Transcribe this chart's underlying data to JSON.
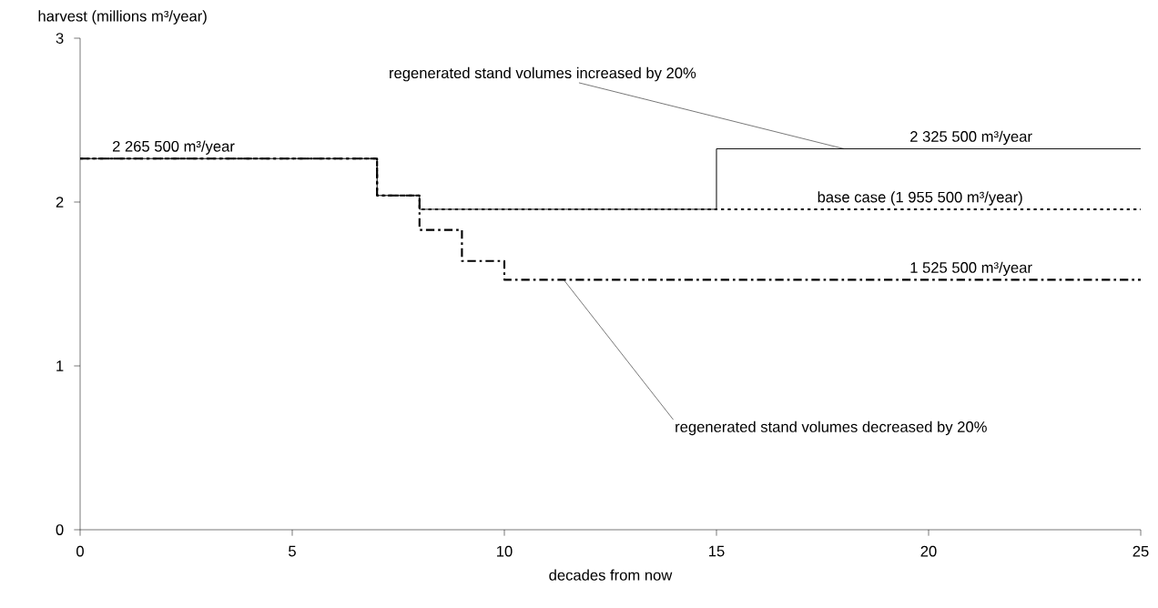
{
  "chart_data": {
    "type": "step",
    "xlabel": "decades from now",
    "ylabel": "harvest (millions m³/year)",
    "xlim": [
      0,
      25
    ],
    "ylim": [
      0,
      3
    ],
    "xticks": [
      0,
      5,
      10,
      15,
      20,
      25
    ],
    "yticks": [
      0,
      1,
      2,
      3
    ],
    "grid": false,
    "marker": "none",
    "series": [
      {
        "color": "#000000",
        "line_style": "solid",
        "x": [
          0,
          7,
          8,
          15,
          25
        ],
        "values": [
          2.2655,
          2.04,
          1.9555,
          2.3255,
          2.3255
        ]
      },
      {
        "color": "#000000",
        "line_style": "dotted",
        "x": [
          0,
          7,
          8,
          25
        ],
        "values": [
          2.2655,
          2.04,
          1.9555,
          1.9555
        ]
      },
      {
        "color": "#000000",
        "line_style": "dashed",
        "x": [
          0,
          7,
          8,
          9,
          10,
          25
        ],
        "values": [
          2.2655,
          2.04,
          1.83,
          1.64,
          1.5255,
          1.5255
        ]
      }
    ],
    "annotations": [
      {
        "text": "2 265 500 m³/year",
        "x": 2.2,
        "y": 2.2655
      },
      {
        "text": "regenerated stand volumes increased by 20%",
        "x": 18,
        "y": 2.3255
      },
      {
        "text": "2 325 500 m³/year",
        "x": 21,
        "y": 2.3255
      },
      {
        "text": "base case (1 955 500 m³/year)",
        "x": 19.8,
        "y": 1.9555
      },
      {
        "text": "1 525 500 m³/year",
        "x": 21,
        "y": 1.5255
      },
      {
        "text": "regenerated stand volumes decreased by 20%",
        "x": 11.4,
        "y": 1.5255
      }
    ]
  }
}
